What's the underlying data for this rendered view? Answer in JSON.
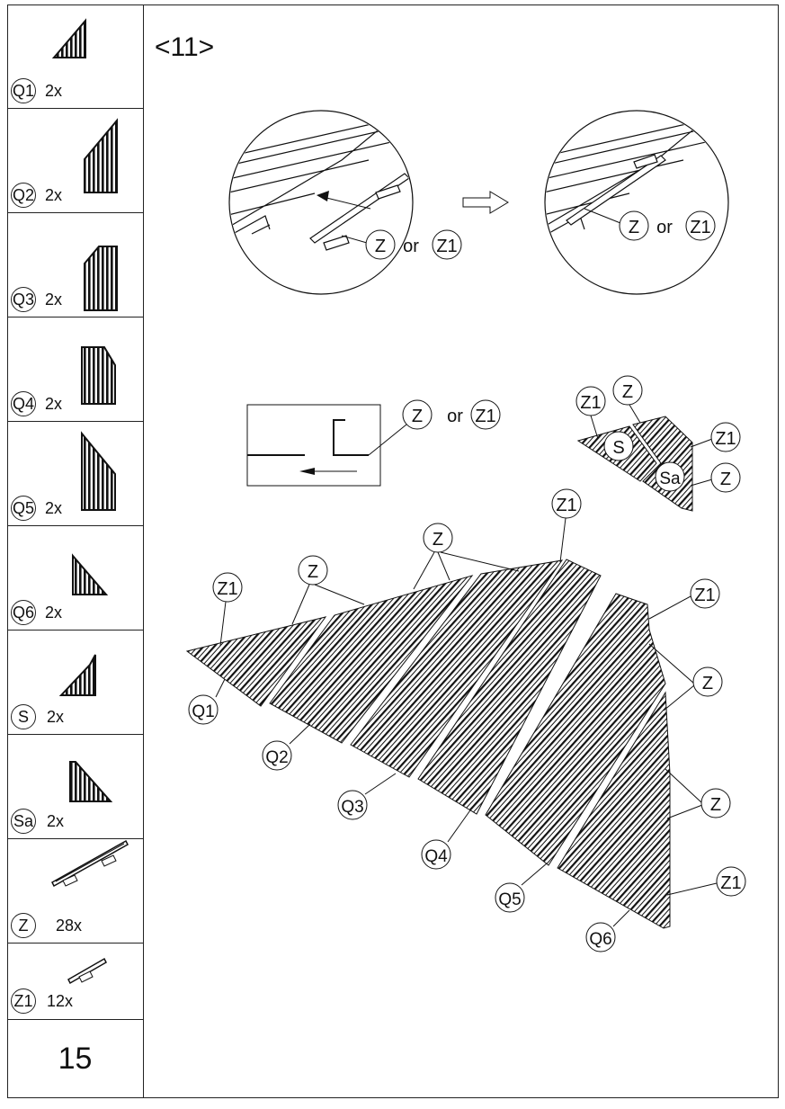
{
  "sidebar": {
    "parts": [
      {
        "id": "Q1",
        "qty": "2x"
      },
      {
        "id": "Q2",
        "qty": "2x"
      },
      {
        "id": "Q3",
        "qty": "2x"
      },
      {
        "id": "Q4",
        "qty": "2x"
      },
      {
        "id": "Q5",
        "qty": "2x"
      },
      {
        "id": "Q6",
        "qty": "2x"
      },
      {
        "id": "S",
        "qty": "2x"
      },
      {
        "id": "Sa",
        "qty": "2x"
      },
      {
        "id": "Z",
        "qty": "28x"
      },
      {
        "id": "Z1",
        "qty": "12x"
      }
    ],
    "page_number": "15"
  },
  "step": {
    "number": "<11>"
  },
  "detail_before": {
    "a": "Z",
    "or": "or",
    "b": "Z1"
  },
  "detail_after": {
    "a": "Z",
    "or": "or",
    "b": "Z1"
  },
  "detail_box": {
    "a": "Z",
    "or": "or",
    "b": "Z1"
  },
  "gable_small": {
    "callouts": [
      "Z1",
      "Z",
      "S",
      "Sa",
      "Z1",
      "Z"
    ]
  },
  "assembly": {
    "callouts": [
      "Z1",
      "Z",
      "Z",
      "Z1",
      "Z1",
      "Z",
      "Z",
      "Z1"
    ],
    "panels": [
      "Q1",
      "Q2",
      "Q3",
      "Q4",
      "Q5",
      "Q6"
    ]
  }
}
